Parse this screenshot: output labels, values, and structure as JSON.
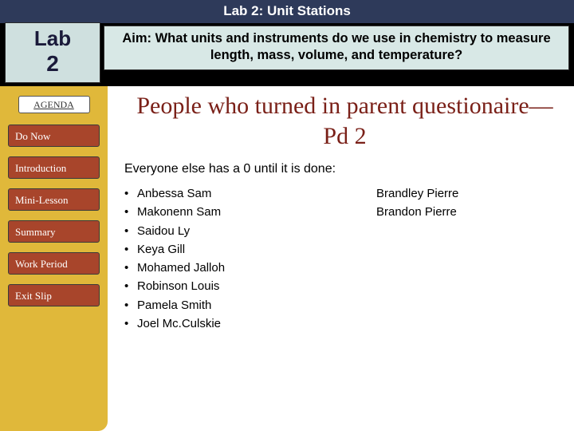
{
  "title": "Lab 2: Unit Stations",
  "lab_box": {
    "line1": "Lab",
    "line2": "2"
  },
  "aim": "Aim: What units and instruments do we use in chemistry to measure length, mass, volume, and temperature?",
  "sidebar": {
    "agenda": "AGENDA",
    "items": [
      "Do Now",
      "Introduction",
      "Mini-Lesson",
      "Summary",
      "Work Period",
      "Exit Slip"
    ]
  },
  "headline": "People who turned in parent questionaire—Pd 2",
  "subline": "Everyone else has a 0 until it is done:",
  "rows": [
    {
      "left": "Anbessa Sam",
      "right": "Brandley Pierre"
    },
    {
      "left": "Makonenn Sam",
      "right": "Brandon Pierre"
    },
    {
      "left": "Saidou Ly",
      "right": ""
    },
    {
      "left": "Keya Gill",
      "right": ""
    },
    {
      "left": "Mohamed Jalloh",
      "right": ""
    },
    {
      "left": "Robinson Louis",
      "right": ""
    },
    {
      "left": "Pamela Smith",
      "right": ""
    },
    {
      "left": "Joel Mc.Culskie",
      "right": ""
    }
  ],
  "colors": {
    "title_bg": "#2e3a5a",
    "sidebar_bg": "#e0b83a",
    "nav_bg": "#a8452b",
    "headline_color": "#7a2018",
    "aim_bg": "#d8e8e6"
  }
}
